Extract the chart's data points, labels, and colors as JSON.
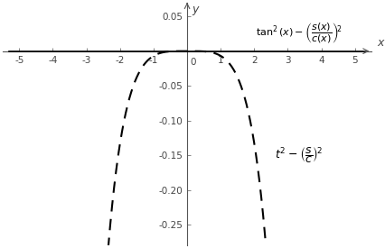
{
  "xlim": [
    -5.5,
    5.5
  ],
  "ylim": [
    -0.28,
    0.07
  ],
  "xticks": [
    -5,
    -4,
    -3,
    -2,
    -1,
    1,
    2,
    3,
    4,
    5
  ],
  "yticks": [
    0.05,
    -0.05,
    -0.1,
    -0.15,
    -0.2,
    -0.25
  ],
  "xlabel": "x",
  "ylabel": "y",
  "background_color": "#ffffff",
  "curve1_color": "#000000",
  "curve2_color": "#000000",
  "axis_color": "#555555",
  "text_color": "#444444"
}
